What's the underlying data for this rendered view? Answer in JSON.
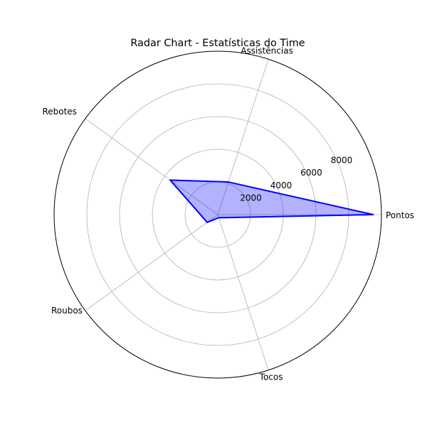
{
  "chart_data": {
    "type": "radar",
    "title": "Radar Chart - Estatísticas do Time",
    "categories": [
      "Pontos",
      "Assistências",
      "Rebotes",
      "Roubos",
      "Tocos"
    ],
    "series": [
      {
        "values": [
          9500,
          2100,
          3600,
          800,
          200
        ],
        "line_color": "#0000ff",
        "fill_color": "#0000ff",
        "fill_alpha": 0.3
      }
    ],
    "r_ticks": [
      2000,
      4000,
      6000,
      8000
    ],
    "r_tick_labels": [
      "2000",
      "4000",
      "6000",
      "8000"
    ],
    "rlim": [
      0,
      10000
    ],
    "grid": true,
    "legend": "none"
  }
}
